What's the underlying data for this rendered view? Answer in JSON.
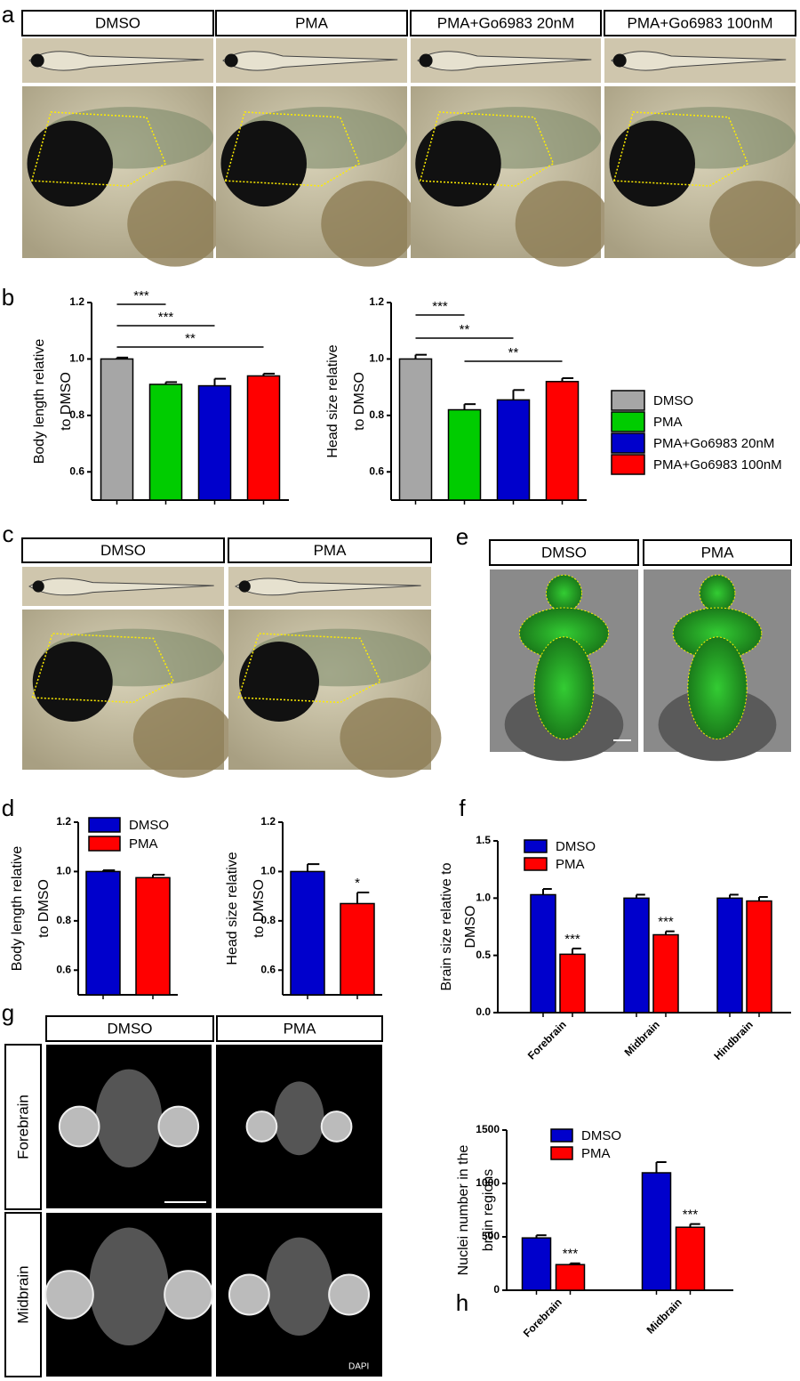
{
  "panels": {
    "a": {
      "label": "a",
      "headers": [
        "DMSO",
        "PMA",
        "PMA+Go6983 20nM",
        "PMA+Go6983 100nM"
      ]
    },
    "b": {
      "label": "b"
    },
    "c": {
      "label": "c",
      "headers": [
        "DMSO",
        "PMA"
      ]
    },
    "d": {
      "label": "d"
    },
    "e": {
      "label": "e",
      "headers": [
        "DMSO",
        "PMA"
      ]
    },
    "f": {
      "label": "f"
    },
    "g": {
      "label": "g",
      "headers": [
        "DMSO",
        "PMA"
      ],
      "rows": [
        "Forebrain",
        "Midbrain"
      ],
      "stain": "DAPI"
    },
    "h": {
      "label": "h"
    }
  },
  "chart_data": [
    {
      "type": "bar",
      "ylabel": [
        "Body length relative",
        "to DMSO"
      ],
      "categories": [
        null
      ],
      "ylim": [
        0.5,
        1.2
      ],
      "yticks": [
        0.6,
        0.8,
        {
          "value": 1,
          "label": "1.0"
        },
        1.2
      ],
      "series": [
        {
          "color": "#a6a6a6",
          "values": [
            1.0
          ],
          "errors": [
            0.005
          ]
        },
        {
          "color": "#00cc00",
          "values": [
            0.91
          ],
          "errors": [
            0.008
          ]
        },
        {
          "color": "#0000cc",
          "values": [
            0.905
          ],
          "errors": [
            0.025
          ]
        },
        {
          "color": "#ff0000",
          "values": [
            0.94
          ],
          "errors": [
            0.008
          ]
        }
      ],
      "brackets": [
        {
          "label": "***",
          "from": 0,
          "to": 1
        },
        {
          "label": "***",
          "from": 0,
          "to": 2
        },
        {
          "label": "**",
          "from": 0,
          "to": 3
        }
      ]
    },
    {
      "type": "bar",
      "ylabel": [
        "Head size relative",
        "to DMSO"
      ],
      "categories": [
        null
      ],
      "ylim": [
        0.5,
        1.2
      ],
      "yticks": [
        0.6,
        0.8,
        {
          "value": 1,
          "label": "1.0"
        },
        1.2
      ],
      "series": [
        {
          "name": "DMSO",
          "color": "#a6a6a6",
          "values": [
            1.0
          ],
          "errors": [
            0.015
          ]
        },
        {
          "name": "PMA",
          "color": "#00cc00",
          "values": [
            0.82
          ],
          "errors": [
            0.02
          ]
        },
        {
          "name": "PMA+Go6983 20nM",
          "color": "#0000cc",
          "values": [
            0.855
          ],
          "errors": [
            0.035
          ]
        },
        {
          "name": "PMA+Go6983 100nM",
          "color": "#ff0000",
          "values": [
            0.92
          ],
          "errors": [
            0.012
          ]
        }
      ],
      "brackets": [
        {
          "label": "***",
          "from": 0,
          "to": 1
        },
        {
          "label": "**",
          "from": 0,
          "to": 2
        },
        {
          "label": "**",
          "from": 1,
          "to": 3
        }
      ]
    },
    {
      "type": "bar",
      "ylabel": [
        "Body length relative",
        "to DMSO"
      ],
      "categories": [
        null
      ],
      "ylim": [
        0.5,
        1.2
      ],
      "yticks": [
        0.6,
        0.8,
        {
          "value": 1,
          "label": "1.0"
        },
        1.2
      ],
      "series": [
        {
          "name": "DMSO",
          "color": "#0000cc",
          "values": [
            1.0
          ],
          "errors": [
            0.005
          ]
        },
        {
          "name": "PMA",
          "color": "#ff0000",
          "values": [
            0.975
          ],
          "errors": [
            0.012
          ]
        }
      ]
    },
    {
      "type": "bar",
      "ylabel": [
        "Head size relative",
        "to DMSO"
      ],
      "categories": [
        null
      ],
      "ylim": [
        0.5,
        1.2
      ],
      "yticks": [
        0.6,
        0.8,
        {
          "value": 1,
          "label": "1.0"
        },
        1.2
      ],
      "series": [
        {
          "color": "#0000cc",
          "values": [
            1.0
          ],
          "errors": [
            0.03
          ]
        },
        {
          "color": "#ff0000",
          "values": [
            0.87
          ],
          "errors": [
            0.045
          ],
          "significance": [
            "*"
          ]
        }
      ]
    },
    {
      "type": "bar",
      "ylabel": [
        "Brain size relative to",
        "DMSO"
      ],
      "categories": [
        "Forebrain",
        "Midbrain",
        "Hindbrain"
      ],
      "ylim": [
        0,
        1.5
      ],
      "yticks": [
        {
          "value": 0,
          "label": "0.0"
        },
        0.5,
        {
          "value": 1,
          "label": "1.0"
        },
        1.5
      ],
      "series": [
        {
          "name": "DMSO",
          "color": "#0000cc",
          "values": [
            1.03,
            1.0,
            1.0
          ],
          "errors": [
            0.05,
            0.03,
            0.03
          ]
        },
        {
          "name": "PMA",
          "color": "#ff0000",
          "values": [
            0.51,
            0.68,
            0.975
          ],
          "errors": [
            0.05,
            0.03,
            0.035
          ],
          "significance": [
            "***",
            "***",
            null
          ]
        }
      ]
    },
    {
      "type": "bar",
      "ylabel": [
        "Nuclei number in the",
        "brain regions"
      ],
      "categories": [
        "Forebrain",
        "Midbrain"
      ],
      "ylim": [
        0,
        1500
      ],
      "yticks": [
        0,
        500,
        1000,
        1500
      ],
      "series": [
        {
          "name": "DMSO",
          "color": "#0000cc",
          "values": [
            490,
            1100
          ],
          "errors": [
            25,
            100
          ]
        },
        {
          "name": "PMA",
          "color": "#ff0000",
          "values": [
            240,
            590
          ],
          "errors": [
            12,
            30
          ],
          "significance": [
            "***",
            "***"
          ]
        }
      ]
    }
  ]
}
